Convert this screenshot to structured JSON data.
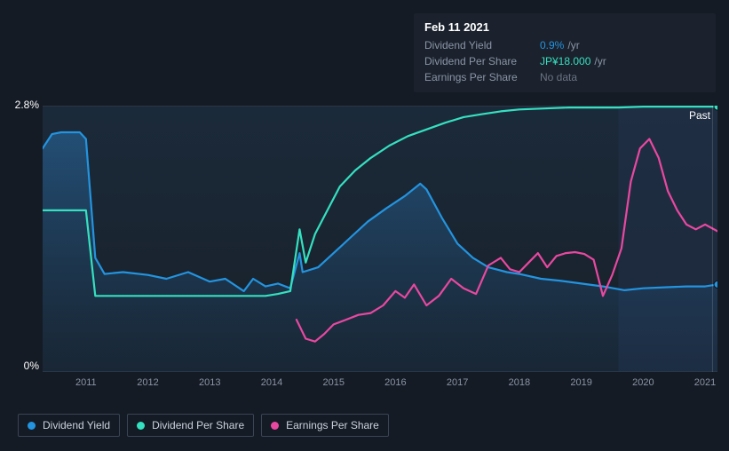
{
  "tooltip": {
    "date": "Feb 11 2021",
    "rows": [
      {
        "label": "Dividend Yield",
        "value": "0.9%",
        "unit": "/yr",
        "color": "blue"
      },
      {
        "label": "Dividend Per Share",
        "value": "JP¥18.000",
        "unit": "/yr",
        "color": "teal"
      },
      {
        "label": "Earnings Per Share",
        "value": "No data",
        "unit": "",
        "color": "nodata"
      }
    ]
  },
  "chart": {
    "background_color": "#151b24",
    "plot_bg": "#1b2531",
    "plot_bg_gradient_top": "#1b2a3a",
    "plot_bg_gradient_bottom": "#182029",
    "border_color": "#2c3546",
    "past_label": "Past",
    "y_axis": {
      "min": 0,
      "max": 2.8,
      "ticks": [
        {
          "v": 2.8,
          "label": "2.8%"
        },
        {
          "v": 0,
          "label": "0%"
        }
      ],
      "label_color": "#ffffff",
      "label_fontsize": 12
    },
    "x_axis": {
      "min": 2010.3,
      "max": 2021.2,
      "ticks": [
        2011,
        2012,
        2013,
        2014,
        2015,
        2016,
        2017,
        2018,
        2019,
        2020,
        2021
      ],
      "label_color": "#8a94a6",
      "label_fontsize": 11
    },
    "highlight_band": {
      "from": 2019.6,
      "to": 2021.2,
      "fill": "#22324a",
      "opacity": 0.55
    },
    "vertical_marker": {
      "x": 2021.12,
      "color": "#ffffff",
      "opacity": 0.15
    },
    "series": [
      {
        "id": "dividend_yield",
        "name": "Dividend Yield",
        "color": "#2394df",
        "fill": "#1f5a8a",
        "fill_opacity": 0.35,
        "line_width": 2.2,
        "points": [
          [
            2010.3,
            2.35
          ],
          [
            2010.45,
            2.5
          ],
          [
            2010.6,
            2.52
          ],
          [
            2010.9,
            2.52
          ],
          [
            2011.0,
            2.45
          ],
          [
            2011.15,
            1.2
          ],
          [
            2011.3,
            1.03
          ],
          [
            2011.6,
            1.05
          ],
          [
            2012.0,
            1.02
          ],
          [
            2012.3,
            0.98
          ],
          [
            2012.65,
            1.05
          ],
          [
            2013.0,
            0.95
          ],
          [
            2013.25,
            0.98
          ],
          [
            2013.55,
            0.85
          ],
          [
            2013.7,
            0.98
          ],
          [
            2013.9,
            0.9
          ],
          [
            2014.1,
            0.93
          ],
          [
            2014.3,
            0.88
          ],
          [
            2014.45,
            1.25
          ],
          [
            2014.5,
            1.05
          ],
          [
            2014.75,
            1.1
          ],
          [
            2015.0,
            1.25
          ],
          [
            2015.25,
            1.4
          ],
          [
            2015.55,
            1.58
          ],
          [
            2015.85,
            1.72
          ],
          [
            2016.15,
            1.85
          ],
          [
            2016.4,
            1.98
          ],
          [
            2016.5,
            1.92
          ],
          [
            2016.75,
            1.62
          ],
          [
            2017.0,
            1.35
          ],
          [
            2017.25,
            1.2
          ],
          [
            2017.5,
            1.1
          ],
          [
            2017.8,
            1.05
          ],
          [
            2018.0,
            1.03
          ],
          [
            2018.35,
            0.98
          ],
          [
            2018.65,
            0.96
          ],
          [
            2019.0,
            0.93
          ],
          [
            2019.35,
            0.9
          ],
          [
            2019.7,
            0.86
          ],
          [
            2020.0,
            0.88
          ],
          [
            2020.35,
            0.89
          ],
          [
            2020.7,
            0.9
          ],
          [
            2021.0,
            0.9
          ],
          [
            2021.2,
            0.92
          ]
        ]
      },
      {
        "id": "dividend_per_share",
        "name": "Dividend Per Share",
        "color": "#35e0c0",
        "line_width": 2.2,
        "points": [
          [
            2010.3,
            1.7
          ],
          [
            2010.7,
            1.7
          ],
          [
            2011.0,
            1.7
          ],
          [
            2011.15,
            0.8
          ],
          [
            2011.4,
            0.8
          ],
          [
            2012.0,
            0.8
          ],
          [
            2012.5,
            0.8
          ],
          [
            2013.0,
            0.8
          ],
          [
            2013.5,
            0.8
          ],
          [
            2013.9,
            0.8
          ],
          [
            2014.1,
            0.82
          ],
          [
            2014.3,
            0.85
          ],
          [
            2014.45,
            1.5
          ],
          [
            2014.55,
            1.15
          ],
          [
            2014.7,
            1.45
          ],
          [
            2014.9,
            1.7
          ],
          [
            2015.1,
            1.95
          ],
          [
            2015.35,
            2.12
          ],
          [
            2015.6,
            2.25
          ],
          [
            2015.9,
            2.38
          ],
          [
            2016.2,
            2.48
          ],
          [
            2016.5,
            2.55
          ],
          [
            2016.8,
            2.62
          ],
          [
            2017.1,
            2.68
          ],
          [
            2017.4,
            2.71
          ],
          [
            2017.7,
            2.74
          ],
          [
            2018.0,
            2.76
          ],
          [
            2018.4,
            2.77
          ],
          [
            2018.8,
            2.78
          ],
          [
            2019.2,
            2.78
          ],
          [
            2019.6,
            2.78
          ],
          [
            2020.0,
            2.79
          ],
          [
            2020.5,
            2.79
          ],
          [
            2021.0,
            2.79
          ],
          [
            2021.2,
            2.79
          ]
        ]
      },
      {
        "id": "earnings_per_share",
        "name": "Earnings Per Share",
        "color": "#e948a0",
        "line_width": 2.2,
        "points": [
          [
            2014.4,
            0.55
          ],
          [
            2014.55,
            0.35
          ],
          [
            2014.7,
            0.32
          ],
          [
            2014.85,
            0.4
          ],
          [
            2015.0,
            0.5
          ],
          [
            2015.2,
            0.55
          ],
          [
            2015.4,
            0.6
          ],
          [
            2015.6,
            0.62
          ],
          [
            2015.8,
            0.7
          ],
          [
            2016.0,
            0.85
          ],
          [
            2016.15,
            0.78
          ],
          [
            2016.3,
            0.92
          ],
          [
            2016.5,
            0.7
          ],
          [
            2016.7,
            0.8
          ],
          [
            2016.9,
            0.98
          ],
          [
            2017.1,
            0.88
          ],
          [
            2017.3,
            0.82
          ],
          [
            2017.5,
            1.12
          ],
          [
            2017.7,
            1.2
          ],
          [
            2017.85,
            1.08
          ],
          [
            2018.0,
            1.05
          ],
          [
            2018.15,
            1.15
          ],
          [
            2018.3,
            1.25
          ],
          [
            2018.45,
            1.1
          ],
          [
            2018.6,
            1.22
          ],
          [
            2018.75,
            1.25
          ],
          [
            2018.9,
            1.26
          ],
          [
            2019.05,
            1.24
          ],
          [
            2019.2,
            1.18
          ],
          [
            2019.35,
            0.8
          ],
          [
            2019.5,
            1.02
          ],
          [
            2019.65,
            1.3
          ],
          [
            2019.8,
            2.0
          ],
          [
            2019.95,
            2.35
          ],
          [
            2020.1,
            2.45
          ],
          [
            2020.25,
            2.25
          ],
          [
            2020.4,
            1.9
          ],
          [
            2020.55,
            1.7
          ],
          [
            2020.7,
            1.55
          ],
          [
            2020.85,
            1.5
          ],
          [
            2021.0,
            1.55
          ],
          [
            2021.2,
            1.48
          ]
        ]
      }
    ],
    "end_markers": [
      {
        "x": 2021.2,
        "y": 2.79,
        "color": "#35e0c0"
      },
      {
        "x": 2021.2,
        "y": 0.92,
        "color": "#2394df"
      }
    ]
  },
  "legend": {
    "items": [
      {
        "id": "dividend_yield",
        "label": "Dividend Yield",
        "color": "#2394df"
      },
      {
        "id": "dividend_per_share",
        "label": "Dividend Per Share",
        "color": "#35e0c0"
      },
      {
        "id": "earnings_per_share",
        "label": "Earnings Per Share",
        "color": "#e948a0"
      }
    ],
    "border_color": "#3a4456",
    "text_color": "#ccd2de",
    "fontsize": 12
  }
}
